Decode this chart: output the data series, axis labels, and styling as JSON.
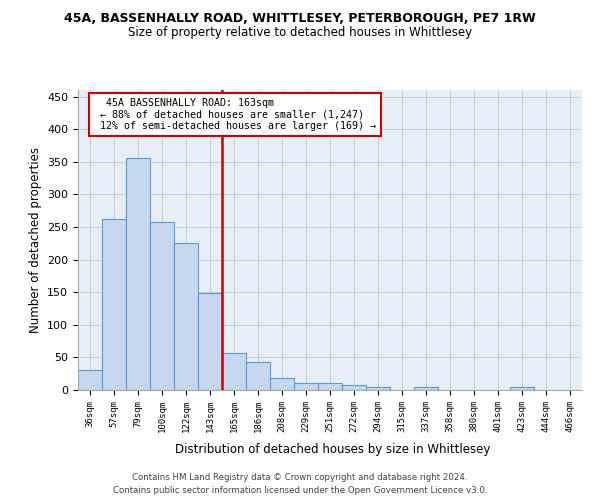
{
  "title_line1": "45A, BASSENHALLY ROAD, WHITTLESEY, PETERBOROUGH, PE7 1RW",
  "title_line2": "Size of property relative to detached houses in Whittlesey",
  "xlabel": "Distribution of detached houses by size in Whittlesey",
  "ylabel": "Number of detached properties",
  "bar_labels": [
    "36sqm",
    "57sqm",
    "79sqm",
    "100sqm",
    "122sqm",
    "143sqm",
    "165sqm",
    "186sqm",
    "208sqm",
    "229sqm",
    "251sqm",
    "272sqm",
    "294sqm",
    "315sqm",
    "337sqm",
    "358sqm",
    "380sqm",
    "401sqm",
    "423sqm",
    "444sqm",
    "466sqm"
  ],
  "bar_heights": [
    30,
    262,
    356,
    258,
    225,
    148,
    56,
    43,
    18,
    11,
    10,
    7,
    5,
    0,
    4,
    0,
    0,
    0,
    4,
    0,
    0
  ],
  "bar_color": "#c5d8f0",
  "bar_edge_color": "#5b9bd5",
  "vline_color": "#cc0000",
  "ylim_max": 460,
  "yticks": [
    0,
    50,
    100,
    150,
    200,
    250,
    300,
    350,
    400,
    450
  ],
  "annotation_title": "45A BASSENHALLY ROAD: 163sqm",
  "annotation_line2": "← 88% of detached houses are smaller (1,247)",
  "annotation_line3": "12% of semi-detached houses are larger (169) →",
  "annotation_box_color": "#cc0000",
  "footer_line1": "Contains HM Land Registry data © Crown copyright and database right 2024.",
  "footer_line2": "Contains public sector information licensed under the Open Government Licence v3.0.",
  "background_color": "#ffffff",
  "plot_bg_color": "#e8eef8",
  "grid_color": "#c8c8c8"
}
